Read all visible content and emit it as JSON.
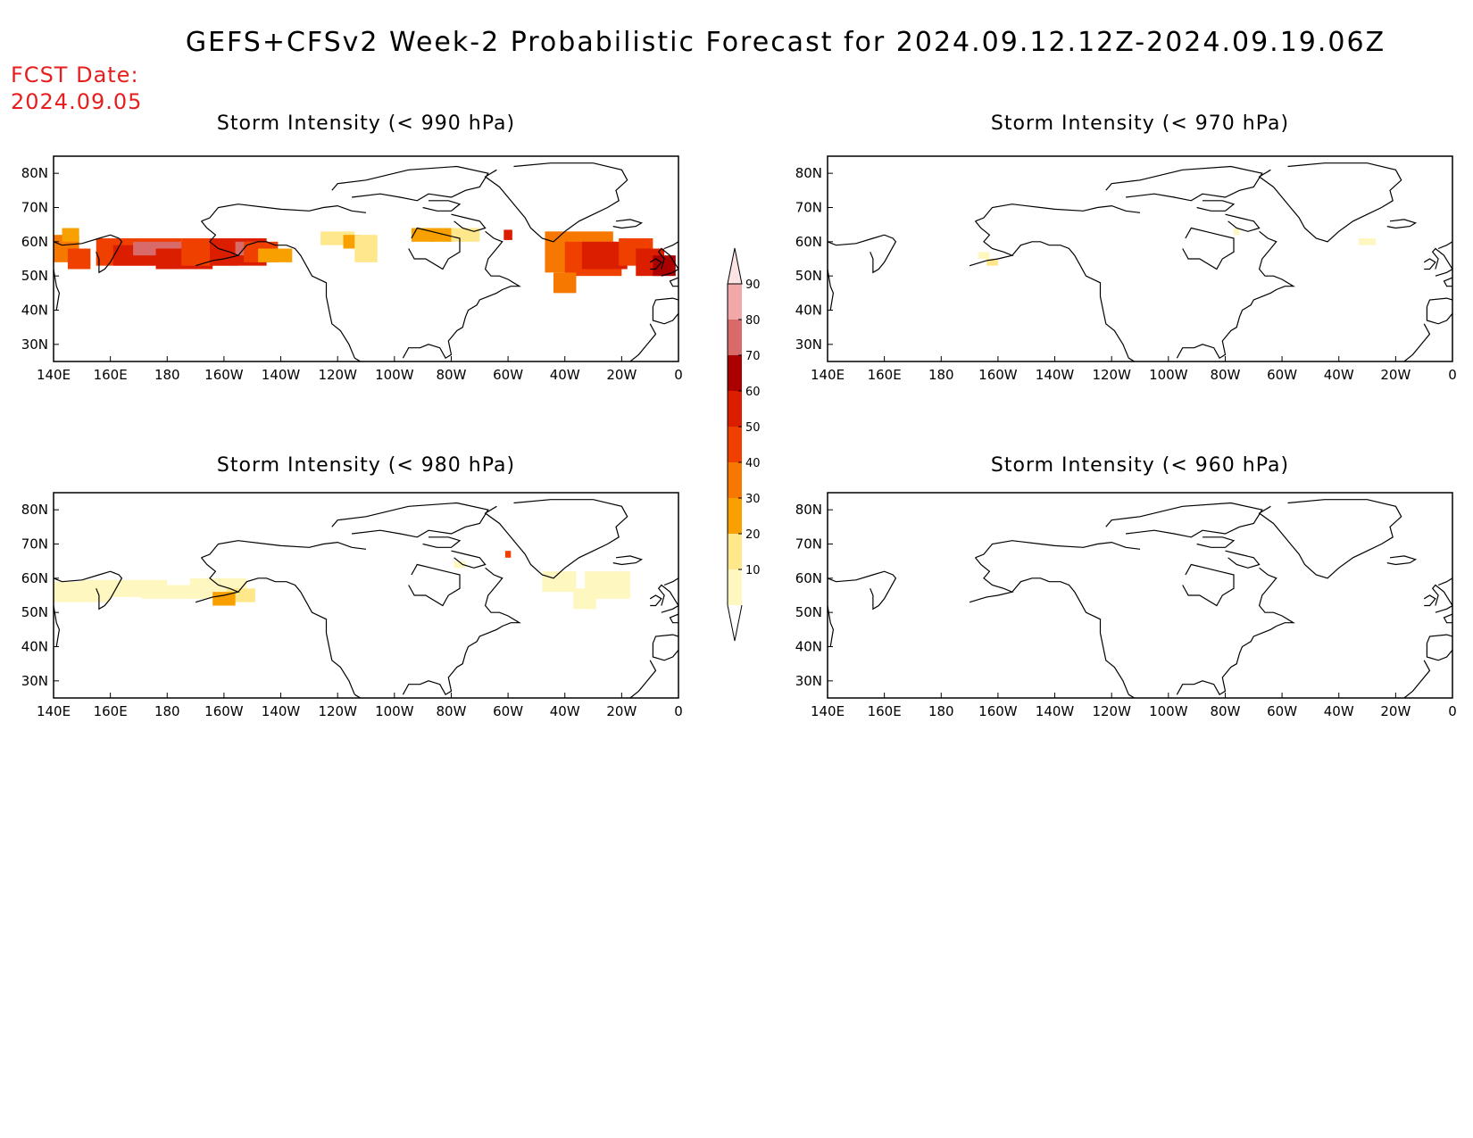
{
  "title": "GEFS+CFSv2 Week-2 Probabilistic Forecast for 2024.09.12.12Z-2024.09.19.06Z",
  "fcst_label": "FCST Date:",
  "fcst_date": "2024.09.05",
  "lon_labels": [
    "140E",
    "160E",
    "180",
    "160W",
    "140W",
    "120W",
    "100W",
    "80W",
    "60W",
    "40W",
    "20W",
    "0"
  ],
  "lat_labels": [
    "80N",
    "70N",
    "60N",
    "50N",
    "40N",
    "30N"
  ],
  "panels": [
    {
      "title": "Storm Intensity (< 990 hPa)"
    },
    {
      "title": "Storm Intensity (< 970 hPa)"
    },
    {
      "title": "Storm Intensity (< 980 hPa)"
    },
    {
      "title": "Storm Intensity (< 960 hPa)"
    }
  ],
  "colorbar": {
    "levels": [
      "10",
      "20",
      "30",
      "40",
      "50",
      "60",
      "70",
      "80",
      "90"
    ],
    "colors": [
      "#fff7c0",
      "#ffe78c",
      "#f7a000",
      "#f77800",
      "#f04000",
      "#dc1e00",
      "#aa0000",
      "#d86a6a",
      "#f2a8a8",
      "#fde4e4"
    ]
  },
  "map_domain": {
    "lon_min": 140,
    "lon_max": 360,
    "lat_min": 25,
    "lat_max": 85
  }
}
